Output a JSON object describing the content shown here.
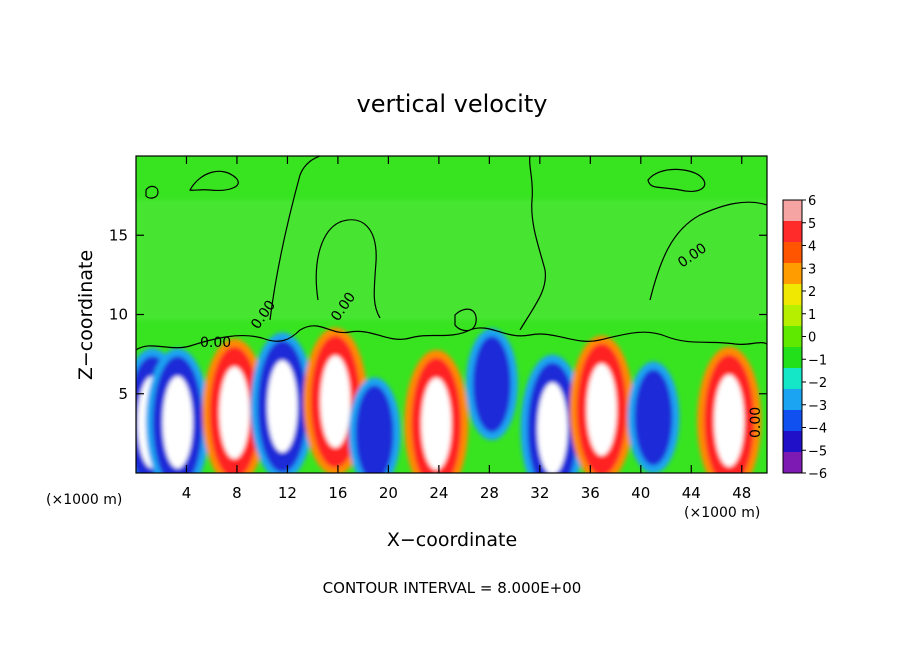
{
  "chart_data": {
    "type": "heatmap",
    "title": "vertical velocity",
    "xlabel": "X−coordinate",
    "ylabel": "Z−coordinate",
    "x_unit_label": "(×1000 m)",
    "x_unit_label_right": "(×1000 m)",
    "xlim": [
      0,
      50
    ],
    "ylim": [
      0,
      20
    ],
    "x_ticks": [
      4,
      8,
      12,
      16,
      20,
      24,
      28,
      32,
      36,
      40,
      44,
      48
    ],
    "y_ticks": [
      5,
      10,
      15
    ],
    "colorbar": {
      "range": [
        -6,
        6
      ],
      "tick_labels": [
        "6",
        "5",
        "4",
        "3",
        "2",
        "1",
        "0",
        "−1",
        "−2",
        "−3",
        "−4",
        "−5",
        "−6"
      ],
      "colors": [
        "#f5a3a3",
        "#ff2a2a",
        "#ff5500",
        "#ff9c00",
        "#f0e800",
        "#b6f000",
        "#5fe800",
        "#22e11a",
        "#14e6c8",
        "#1aa4f2",
        "#1050f0",
        "#2010c8",
        "#7d1ab4"
      ]
    },
    "contour_labels": [
      "0.00",
      "0.00",
      "0.00",
      "0.00",
      "0.00"
    ],
    "footer": "CONTOUR INTERVAL = 8.000E+00",
    "cells": [
      {
        "x": 1.3,
        "z": 3.2,
        "value": -10
      },
      {
        "x": 3.3,
        "z": 3.2,
        "value": -10
      },
      {
        "x": 7.8,
        "z": 3.8,
        "value": 10
      },
      {
        "x": 11.6,
        "z": 4.2,
        "value": -10
      },
      {
        "x": 15.8,
        "z": 4.5,
        "value": 10
      },
      {
        "x": 18.9,
        "z": 2.5,
        "value": -6
      },
      {
        "x": 23.8,
        "z": 3.1,
        "value": 8
      },
      {
        "x": 28.2,
        "z": 5.6,
        "value": -5
      },
      {
        "x": 33.0,
        "z": 2.8,
        "value": -10
      },
      {
        "x": 36.9,
        "z": 4.0,
        "value": 10
      },
      {
        "x": 41.0,
        "z": 3.5,
        "value": -6
      },
      {
        "x": 47.0,
        "z": 3.3,
        "value": 10
      }
    ]
  }
}
